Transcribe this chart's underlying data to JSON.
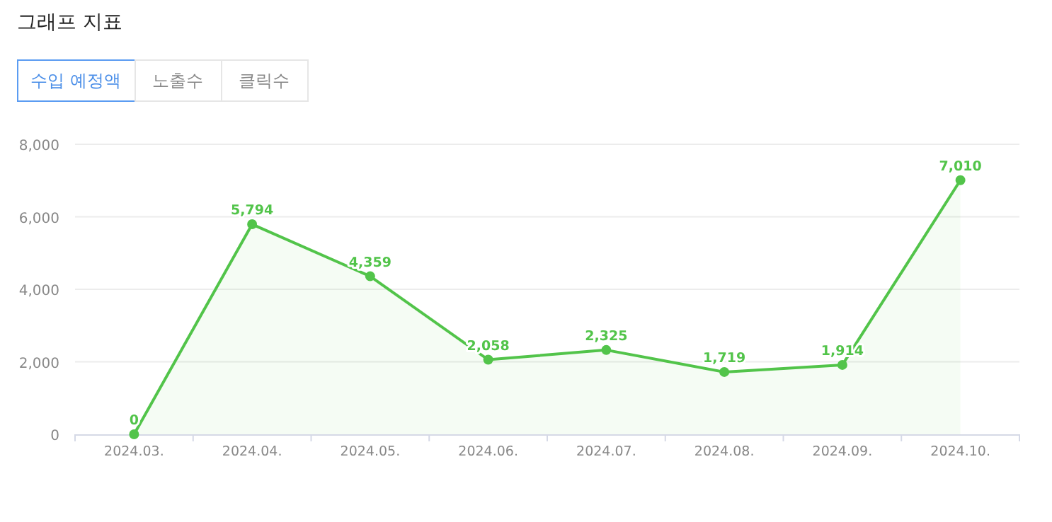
{
  "chart_data": {
    "type": "area",
    "title": "그래프 지표",
    "annotations": [
      "수입 예정액",
      "노출수",
      "클릭수"
    ],
    "categories": [
      "2024.03.",
      "2024.04.",
      "2024.05.",
      "2024.06.",
      "2024.07.",
      "2024.08.",
      "2024.09.",
      "2024.10."
    ],
    "values": [
      0,
      5794,
      4359,
      2058,
      2325,
      1719,
      1914,
      7010
    ],
    "value_labels": [
      "0",
      "5,794",
      "4,359",
      "2,058",
      "2,325",
      "1,719",
      "1,914",
      "7,010"
    ],
    "color": "#52c44a",
    "ylim": [
      0,
      8000
    ],
    "yticks": [
      0,
      {
        "value": 2000,
        "label": "2,000"
      },
      {
        "value": 4000,
        "label": "4,000"
      },
      {
        "value": 6000,
        "label": "6,000"
      },
      {
        "value": 8000,
        "label": "8,000"
      }
    ],
    "grid": "y",
    "marker": "circle",
    "line_style": "solid"
  }
}
